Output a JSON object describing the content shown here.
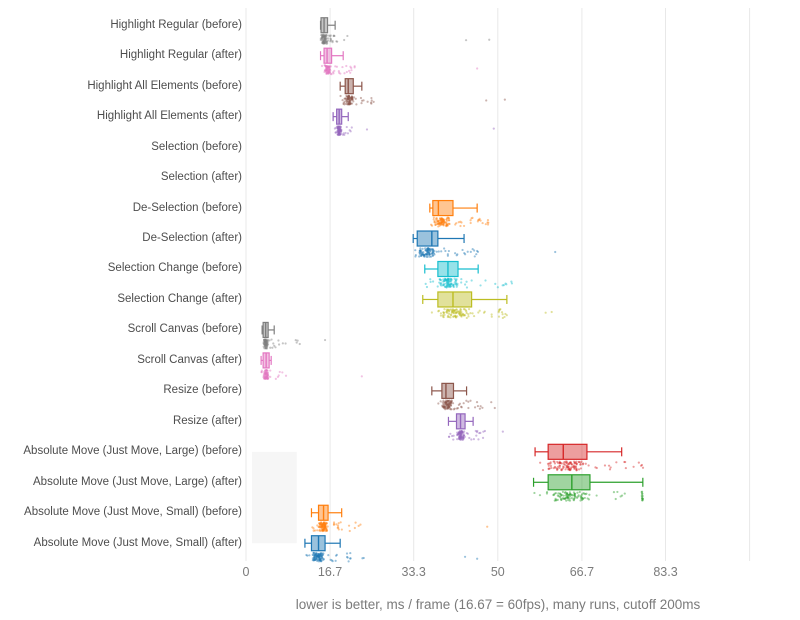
{
  "chart_data": {
    "type": "box",
    "orientation": "horizontal",
    "title": "",
    "xlabel": "lower is better, ms / frame (16.67 = 60fps), many runs, cutoff 200ms",
    "xlim": [
      0,
      100
    ],
    "grid": true,
    "show_points": true,
    "x_ticks": [
      {
        "value": 0,
        "label": "0"
      },
      {
        "value": 16.7,
        "label": "16.7"
      },
      {
        "value": 33.3,
        "label": "33.3"
      },
      {
        "value": 50,
        "label": "50"
      },
      {
        "value": 66.7,
        "label": "66.7"
      },
      {
        "value": 83.3,
        "label": "83.3"
      },
      {
        "value": 100,
        "label": ""
      }
    ],
    "shaded_region": {
      "x0_ms": 1.2,
      "x1_ms": 10.1,
      "row_from": 14,
      "row_to": 17,
      "color": "rgba(0,0,0,0.035)"
    },
    "rows": [
      {
        "label": "Highlight Regular (before)",
        "color": "#7f7f7f",
        "box": {
          "min": 14.8,
          "q1": 14.9,
          "median": 15.5,
          "q3": 16.2,
          "max": 17.7
        },
        "points_to": 21.0,
        "outliers": [
          43.7,
          48.3
        ],
        "n": 90
      },
      {
        "label": "Highlight Regular (after)",
        "color": "#e377c2",
        "box": {
          "min": 14.8,
          "q1": 15.5,
          "median": 16.1,
          "q3": 17.0,
          "max": 19.3
        },
        "points_to": 22.0,
        "outliers": [
          45.9
        ],
        "n": 90
      },
      {
        "label": "Highlight All Elements (before)",
        "color": "#8c564b",
        "box": {
          "min": 18.7,
          "q1": 19.7,
          "median": 20.3,
          "q3": 21.3,
          "max": 23.0
        },
        "points_to": 25.5,
        "outliers": [
          47.7,
          51.4
        ],
        "n": 90
      },
      {
        "label": "Highlight All Elements (after)",
        "color": "#9467bd",
        "box": {
          "min": 17.3,
          "q1": 18.0,
          "median": 18.5,
          "q3": 19.0,
          "max": 20.3
        },
        "points_to": 25.0,
        "outliers": [
          49.2
        ],
        "n": 90
      },
      {
        "label": "Selection (before)",
        "color": "#d62728",
        "box": null,
        "points_to": null,
        "outliers": [],
        "n": 0
      },
      {
        "label": "Selection (after)",
        "color": "#2ca02c",
        "box": null,
        "points_to": null,
        "outliers": [],
        "n": 0
      },
      {
        "label": "De-Selection (before)",
        "color": "#ff7f0e",
        "box": {
          "min": 36.5,
          "q1": 37.1,
          "median": 38.2,
          "q3": 41.1,
          "max": 45.9
        },
        "points_to": 48.5,
        "outliers": [],
        "n": 110
      },
      {
        "label": "De-Selection (after)",
        "color": "#1f77b4",
        "box": {
          "min": 33.2,
          "q1": 34.0,
          "median": 36.9,
          "q3": 38.1,
          "max": 43.3
        },
        "points_to": 47.0,
        "outliers": [
          61.4
        ],
        "n": 110
      },
      {
        "label": "Selection Change (before)",
        "color": "#17becf",
        "box": {
          "min": 35.5,
          "q1": 38.1,
          "median": 40.1,
          "q3": 42.1,
          "max": 46.1
        },
        "points_to": 53.0,
        "outliers": [],
        "n": 110
      },
      {
        "label": "Selection Change (after)",
        "color": "#bcbd22",
        "box": {
          "min": 35.1,
          "q1": 38.1,
          "median": 41.1,
          "q3": 44.8,
          "max": 51.8
        },
        "points_to": 50.0,
        "outliers": [
          59.5,
          60.7
        ],
        "n": 110
      },
      {
        "label": "Scroll Canvas (before)",
        "color": "#7f7f7f",
        "box": {
          "min": 3.2,
          "q1": 3.4,
          "median": 3.9,
          "q3": 4.4,
          "max": 5.6
        },
        "points_to": 11.0,
        "outliers": [
          15.7
        ],
        "n": 80
      },
      {
        "label": "Scroll Canvas (after)",
        "color": "#e377c2",
        "box": {
          "min": 3.0,
          "q1": 3.4,
          "median": 4.0,
          "q3": 4.6,
          "max": 5.0
        },
        "points_to": 8.0,
        "outliers": [
          23.0
        ],
        "n": 80
      },
      {
        "label": "Resize (before)",
        "color": "#8c564b",
        "box": {
          "min": 36.9,
          "q1": 38.9,
          "median": 39.7,
          "q3": 41.2,
          "max": 43.8
        },
        "points_to": 47.0,
        "outliers": [
          48.7,
          49.4
        ],
        "n": 100
      },
      {
        "label": "Resize (after)",
        "color": "#9467bd",
        "box": {
          "min": 40.2,
          "q1": 41.8,
          "median": 42.6,
          "q3": 43.5,
          "max": 45.1
        },
        "points_to": 47.5,
        "outliers": [
          51.0
        ],
        "n": 100
      },
      {
        "label": "Absolute Move (Just Move, Large) (before)",
        "color": "#d62728",
        "box": {
          "min": 57.4,
          "q1": 60.0,
          "median": 63.0,
          "q3": 67.7,
          "max": 74.6
        },
        "points_to": 79.0,
        "outliers": [],
        "n": 120
      },
      {
        "label": "Absolute Move (Just Move, Large) (after)",
        "color": "#2ca02c",
        "box": {
          "min": 57.1,
          "q1": 60.0,
          "median": 64.7,
          "q3": 68.3,
          "max": 78.8
        },
        "points_to": 78.5,
        "outliers": [],
        "n": 120
      },
      {
        "label": "Absolute Move (Just Move, Small) (before)",
        "color": "#ff7f0e",
        "box": {
          "min": 13.0,
          "q1": 14.4,
          "median": 15.4,
          "q3": 16.3,
          "max": 19.0
        },
        "points_to": 23.0,
        "outliers": [
          47.9
        ],
        "n": 110
      },
      {
        "label": "Absolute Move (Just Move, Small) (after)",
        "color": "#1f77b4",
        "box": {
          "min": 11.7,
          "q1": 13.0,
          "median": 14.4,
          "q3": 15.7,
          "max": 18.7
        },
        "points_to": 23.5,
        "outliers": [
          43.5,
          45.9
        ],
        "n": 110
      }
    ]
  }
}
